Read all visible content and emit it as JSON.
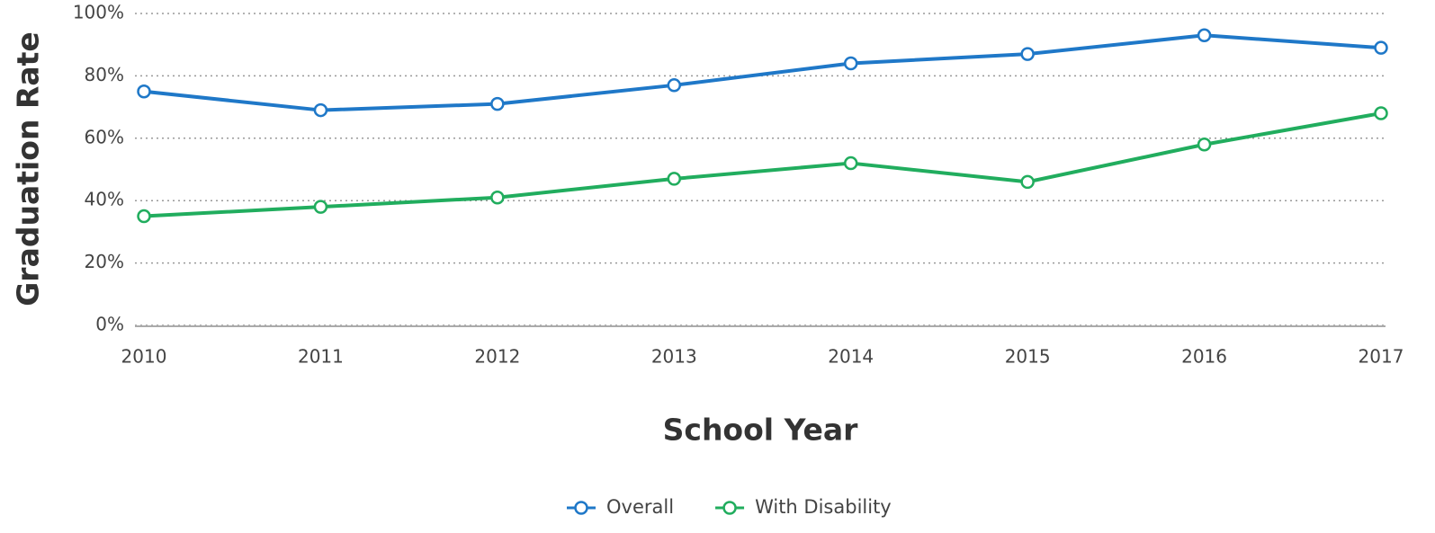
{
  "chart_data": {
    "type": "line",
    "x_label": "School Year",
    "y_label": "Graduation Rate",
    "categories": [
      "2010",
      "2011",
      "2012",
      "2013",
      "2014",
      "2015",
      "2016",
      "2017"
    ],
    "series": [
      {
        "name": "Overall",
        "color": "#1f78c8",
        "values": [
          75,
          69,
          71,
          77,
          84,
          87,
          93,
          89
        ]
      },
      {
        "name": "With Disability",
        "color": "#21ad5e",
        "values": [
          35,
          38,
          41,
          47,
          52,
          46,
          58,
          68
        ]
      }
    ],
    "ylim": [
      0,
      100
    ],
    "yticks": [
      {
        "value": 0,
        "label": "0%"
      },
      {
        "value": 20,
        "label": "20%"
      },
      {
        "value": 40,
        "label": "40%"
      },
      {
        "value": 60,
        "label": "60%"
      },
      {
        "value": 80,
        "label": "80%"
      },
      {
        "value": 100,
        "label": "100%"
      }
    ],
    "grid": true,
    "legend": "bottom"
  }
}
